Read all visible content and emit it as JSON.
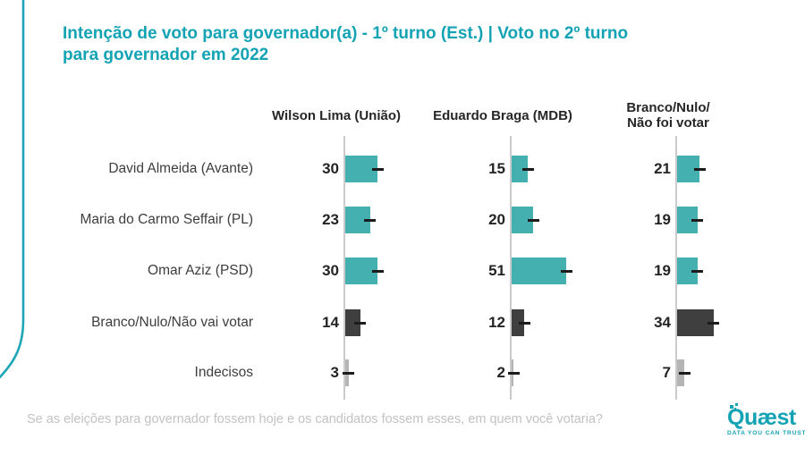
{
  "title": {
    "line1": "Intenção de voto para governador(a) - 1º turno (Est.) | Voto no 2º turno",
    "line2": "para governador em 2022"
  },
  "footer": {
    "question": "Se as eleições para governador fossem hoje e os candidatos fossem esses, em quem você votaria?"
  },
  "logo": {
    "name": "Quæst",
    "tagline": "DATA YOU CAN TRUST"
  },
  "colors": {
    "brand_teal": "#14a3b4",
    "bar_teal": "#44b0b0",
    "bar_dark": "#3f3f3f",
    "bar_light": "#b5b5b5",
    "axis_gray": "#cbcbcb",
    "error_dash": "#1c1c1c"
  },
  "chart_data": {
    "type": "bar",
    "orientation": "horizontal",
    "unit": "%",
    "title": "Intenção de voto para governador(a) - 1º turno (Est.) | Voto no 2º turno para governador em 2022",
    "error_bars": true,
    "value_range": [
      0,
      60
    ],
    "categories": [
      "David Almeida (Avante)",
      "Maria do Carmo Seffair (PL)",
      "Omar Aziz (PSD)",
      "Branco/Nulo/Não vai votar",
      "Indecisos"
    ],
    "category_colors": [
      "teal",
      "teal",
      "teal",
      "dark",
      "light"
    ],
    "panels": [
      {
        "header_lines": [
          "Wilson Lima (União)"
        ],
        "values": [
          30,
          23,
          30,
          14,
          3
        ]
      },
      {
        "header_lines": [
          "Eduardo Braga (MDB)"
        ],
        "values": [
          15,
          20,
          51,
          12,
          2
        ]
      },
      {
        "header_lines": [
          "Branco/Nulo/",
          "Não foi votar"
        ],
        "values": [
          21,
          19,
          19,
          34,
          7
        ]
      }
    ]
  }
}
